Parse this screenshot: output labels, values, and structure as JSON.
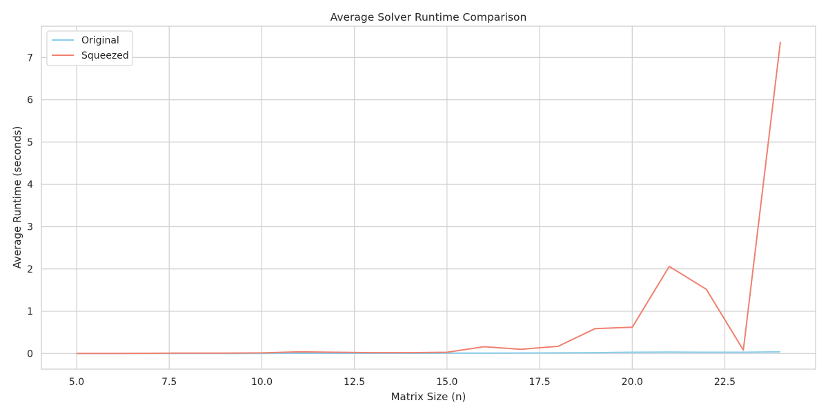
{
  "chart_data": {
    "type": "line",
    "title": "Average Solver Runtime Comparison",
    "xlabel": "Matrix Size (n)",
    "ylabel": "Average Runtime (seconds)",
    "xlim": [
      4.05,
      24.95
    ],
    "ylim": [
      -0.37,
      7.74
    ],
    "x_ticks": [
      5.0,
      7.5,
      10.0,
      12.5,
      15.0,
      17.5,
      20.0,
      22.5
    ],
    "x_tick_labels": [
      "5.0",
      "7.5",
      "10.0",
      "12.5",
      "15.0",
      "17.5",
      "20.0",
      "22.5"
    ],
    "y_ticks": [
      0,
      1,
      2,
      3,
      4,
      5,
      6,
      7
    ],
    "y_tick_labels": [
      "0",
      "1",
      "2",
      "3",
      "4",
      "5",
      "6",
      "7"
    ],
    "grid": true,
    "legend_position": "top-left",
    "x": [
      5,
      6,
      7,
      8,
      9,
      10,
      11,
      12,
      13,
      14,
      15,
      16,
      17,
      18,
      19,
      20,
      21,
      22,
      23,
      24
    ],
    "series": [
      {
        "name": "Original",
        "color": "#87CEEB",
        "values": [
          0.0,
          0.0,
          0.0,
          0.0,
          0.0,
          0.0,
          0.005,
          0.005,
          0.005,
          0.005,
          0.008,
          0.01,
          0.012,
          0.015,
          0.02,
          0.03,
          0.035,
          0.03,
          0.03,
          0.04
        ]
      },
      {
        "name": "Squeezed",
        "color": "#F08070",
        "values": [
          0.0,
          0.0,
          0.005,
          0.01,
          0.01,
          0.015,
          0.04,
          0.03,
          0.02,
          0.02,
          0.03,
          0.16,
          0.1,
          0.17,
          0.59,
          0.62,
          2.06,
          1.52,
          0.08,
          7.37
        ]
      }
    ]
  }
}
